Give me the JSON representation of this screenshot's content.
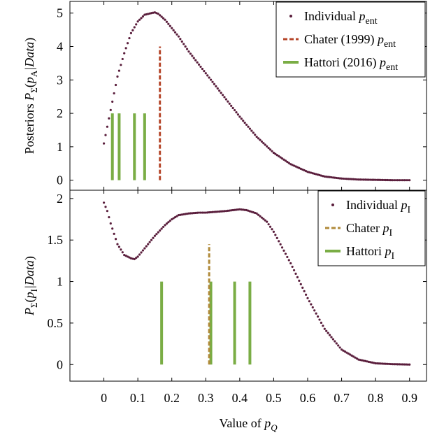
{
  "colors": {
    "individual": "#5a1e3c",
    "chater_top": "#b5462a",
    "chater_bottom": "#b08a3a",
    "hattori": "#7aad45",
    "axis": "#000000"
  },
  "axes": {
    "xlabel_prefix": "Value of ",
    "xlabel_var": "p",
    "xlabel_sub": "Q",
    "xlim": [
      -0.1,
      0.95
    ],
    "xticks": [
      0,
      0.1,
      0.2,
      0.3,
      0.4,
      0.5,
      0.6,
      0.7,
      0.8,
      0.9
    ],
    "xtick_labels": [
      "0",
      "0.1",
      "0.2",
      "0.3",
      "0.4",
      "0.5",
      "0.6",
      "0.7",
      "0.8",
      "0.9"
    ]
  },
  "chart_data": [
    {
      "type": "scatter",
      "panel": "top",
      "ylabel_prefix": "Posteriors ",
      "ylabel_rest": "P",
      "ylabel_sub": "Σ",
      "ylabel_arg_var": "p",
      "ylabel_arg_sub": "A",
      "ylabel_arg_rest": "|Data",
      "ylim": [
        -0.3,
        5.35
      ],
      "yticks": [
        0,
        1,
        2,
        3,
        4,
        5
      ],
      "ytick_labels": [
        "0",
        "1",
        "2",
        "3",
        "4",
        "5"
      ],
      "legend_position": "top-right",
      "legend": [
        {
          "text": "Individual ",
          "var": "p",
          "sub": "ent",
          "style": "dot",
          "color_key": "individual"
        },
        {
          "text": "Chater (1999) ",
          "var": "p",
          "sub": "ent",
          "style": "dashed",
          "color_key": "chater_top"
        },
        {
          "text": "Hattori (2016) ",
          "var": "p",
          "sub": "ent",
          "style": "solid",
          "color_key": "hattori"
        }
      ],
      "individual_curve": {
        "x": [
          0,
          0.02,
          0.04,
          0.06,
          0.08,
          0.1,
          0.12,
          0.14,
          0.15,
          0.16,
          0.18,
          0.2,
          0.22,
          0.25,
          0.3,
          0.35,
          0.4,
          0.45,
          0.5,
          0.55,
          0.6,
          0.65,
          0.7,
          0.75,
          0.8,
          0.85,
          0.9
        ],
        "y": [
          1.1,
          2.1,
          3.1,
          3.8,
          4.4,
          4.75,
          4.95,
          5.0,
          5.02,
          4.98,
          4.8,
          4.55,
          4.3,
          3.85,
          3.2,
          2.55,
          1.9,
          1.3,
          0.82,
          0.48,
          0.25,
          0.11,
          0.05,
          0.02,
          0.01,
          0.0,
          0.0
        ]
      },
      "hattori_lines": {
        "x": [
          0.025,
          0.045,
          0.09,
          0.12
        ],
        "y_top": 2
      },
      "chater_line": {
        "x": 0.165,
        "y_top": 4
      }
    },
    {
      "type": "scatter",
      "panel": "bottom",
      "ylabel_rest": "P",
      "ylabel_sub": "Σ",
      "ylabel_arg_var": "p",
      "ylabel_arg_sub": "I",
      "ylabel_arg_rest": "|Data",
      "ylim": [
        -0.2,
        2.1
      ],
      "yticks": [
        0,
        0.5,
        1,
        1.5,
        2
      ],
      "ytick_labels": [
        "0",
        "0.5",
        "1",
        "1.5",
        "2"
      ],
      "legend_position": "top-right",
      "legend": [
        {
          "text": "Individual ",
          "var": "p",
          "sub": "I",
          "style": "dot",
          "color_key": "individual"
        },
        {
          "text": "Chater ",
          "var": "p",
          "sub": "I",
          "style": "dashed",
          "color_key": "chater_bottom"
        },
        {
          "text": "Hattori ",
          "var": "p",
          "sub": "I",
          "style": "solid",
          "color_key": "hattori"
        }
      ],
      "individual_curve": {
        "x": [
          0,
          0.01,
          0.02,
          0.04,
          0.06,
          0.08,
          0.09,
          0.1,
          0.12,
          0.15,
          0.18,
          0.2,
          0.22,
          0.25,
          0.28,
          0.3,
          0.33,
          0.36,
          0.38,
          0.4,
          0.42,
          0.45,
          0.48,
          0.5,
          0.55,
          0.6,
          0.65,
          0.7,
          0.75,
          0.8,
          0.85,
          0.9
        ],
        "y": [
          1.95,
          1.85,
          1.7,
          1.45,
          1.32,
          1.28,
          1.27,
          1.3,
          1.4,
          1.55,
          1.68,
          1.75,
          1.8,
          1.82,
          1.83,
          1.83,
          1.84,
          1.85,
          1.86,
          1.87,
          1.86,
          1.82,
          1.72,
          1.6,
          1.22,
          0.8,
          0.43,
          0.18,
          0.06,
          0.015,
          0.005,
          0.0
        ]
      },
      "hattori_lines": {
        "x": [
          0.17,
          0.315,
          0.385,
          0.43
        ],
        "y_top": 1
      },
      "chater_line": {
        "x": 0.31,
        "y_top": 1.45
      }
    }
  ]
}
